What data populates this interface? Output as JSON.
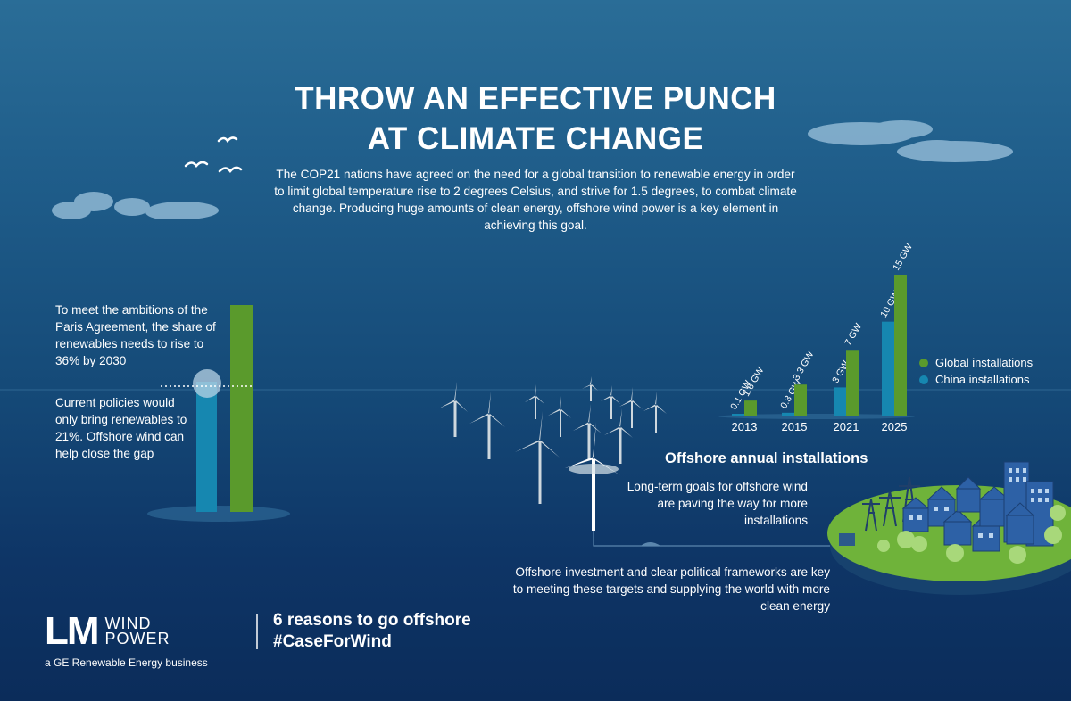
{
  "title": {
    "line1": "THROW AN EFFECTIVE PUNCH",
    "line2": "AT CLIMATE CHANGE"
  },
  "intro": "The COP21 nations have agreed on the need for a global transition to renewable energy in order to limit global temperature rise to 2 degrees Celsius, and strive for 1.5 degrees, to combat climate change. Producing huge amounts of clean energy, offshore wind power is a key element in achieving this goal.",
  "paris": {
    "target_text": "To meet the ambitions of the Paris Agreement, the share of renewables needs to rise to 36% by 2030",
    "current_text": "Current policies would only bring renewables to 21%. Offshore wind can help close the gap",
    "target_share": 36,
    "current_share": 21
  },
  "installations": {
    "title": "Offshore annual installations",
    "description": "Long-term goals for offshore wind are paving the way for more installations",
    "legend": {
      "global": "Global installations",
      "china": "China installations"
    },
    "colors": {
      "global": "#5a9a2c",
      "china": "#1687b0"
    }
  },
  "chart_data": {
    "type": "bar",
    "categories": [
      "2013",
      "2015",
      "2021",
      "2025"
    ],
    "series": [
      {
        "name": "Global installations",
        "values": [
          1.6,
          3.3,
          7,
          15
        ],
        "labels": [
          "1.6 GW",
          "3.3 GW",
          "7 GW",
          "15 GW"
        ]
      },
      {
        "name": "China installations",
        "values": [
          0.1,
          0.3,
          3,
          10
        ],
        "labels": [
          "0.1 GW",
          "0.3 GW",
          "3 GW",
          "10 GW"
        ]
      }
    ],
    "ylim": [
      0,
      15
    ],
    "legend_position": "right"
  },
  "investment_text": "Offshore investment and clear political frameworks are key to meeting these targets and supplying the world with more clean energy",
  "footer": {
    "logo_lm": "LM",
    "logo_wind": "WIND",
    "logo_power": "POWER",
    "logo_tagline": "a GE Renewable Energy business",
    "campaign_line1": "6 reasons to go offshore",
    "campaign_line2": "#CaseForWind"
  }
}
